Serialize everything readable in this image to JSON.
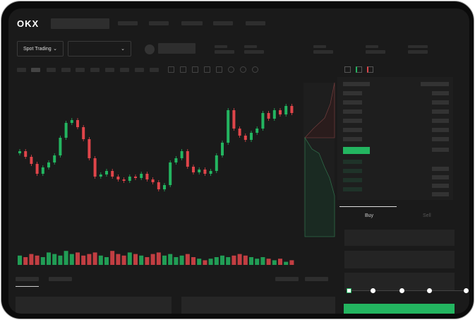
{
  "header": {
    "logo": "OKX"
  },
  "market_select": {
    "label": "Spot Trading",
    "pair_value": ""
  },
  "trade_panel": {
    "tabs": [
      "Buy",
      "Sell"
    ],
    "active_tab": "Buy",
    "leverage_steps": 5,
    "selected_step": 0
  },
  "colors": {
    "up": "#23b560",
    "down": "#e0454a",
    "background": "#1a1a1a",
    "accent": "#23b560"
  },
  "chart_data": {
    "type": "candlestick",
    "candles": [
      {
        "o": 125,
        "c": 128
      },
      {
        "o": 128,
        "c": 120
      },
      {
        "o": 120,
        "c": 110
      },
      {
        "o": 110,
        "c": 96
      },
      {
        "o": 96,
        "c": 105
      },
      {
        "o": 105,
        "c": 112
      },
      {
        "o": 112,
        "c": 122
      },
      {
        "o": 122,
        "c": 147
      },
      {
        "o": 147,
        "c": 168
      },
      {
        "o": 168,
        "c": 172
      },
      {
        "o": 172,
        "c": 162
      },
      {
        "o": 162,
        "c": 145
      },
      {
        "o": 145,
        "c": 118
      },
      {
        "o": 118,
        "c": 92
      },
      {
        "o": 92,
        "c": 95
      },
      {
        "o": 95,
        "c": 100
      },
      {
        "o": 100,
        "c": 92
      },
      {
        "o": 92,
        "c": 88
      },
      {
        "o": 88,
        "c": 86
      },
      {
        "o": 86,
        "c": 92
      },
      {
        "o": 92,
        "c": 90
      },
      {
        "o": 90,
        "c": 96
      },
      {
        "o": 96,
        "c": 88
      },
      {
        "o": 88,
        "c": 84
      },
      {
        "o": 84,
        "c": 74
      },
      {
        "o": 74,
        "c": 80
      },
      {
        "o": 80,
        "c": 112
      },
      {
        "o": 112,
        "c": 118
      },
      {
        "o": 118,
        "c": 128
      },
      {
        "o": 128,
        "c": 106
      },
      {
        "o": 106,
        "c": 98
      },
      {
        "o": 98,
        "c": 102
      },
      {
        "o": 102,
        "c": 96
      },
      {
        "o": 96,
        "c": 100
      },
      {
        "o": 100,
        "c": 122
      },
      {
        "o": 122,
        "c": 140
      },
      {
        "o": 140,
        "c": 186
      },
      {
        "o": 186,
        "c": 160
      },
      {
        "o": 160,
        "c": 150
      },
      {
        "o": 150,
        "c": 144
      },
      {
        "o": 144,
        "c": 154
      },
      {
        "o": 154,
        "c": 160
      },
      {
        "o": 160,
        "c": 182
      },
      {
        "o": 182,
        "c": 174
      },
      {
        "o": 174,
        "c": 186
      },
      {
        "o": 186,
        "c": 180
      },
      {
        "o": 180,
        "c": 192
      },
      {
        "o": 192,
        "c": 182
      }
    ],
    "volume": [
      6,
      5,
      7,
      6,
      5,
      8,
      7,
      6,
      9,
      7,
      8,
      6,
      7,
      8,
      6,
      5,
      9,
      7,
      6,
      8,
      7,
      6,
      5,
      7,
      8,
      6,
      7,
      5,
      6,
      7,
      5,
      4,
      3,
      4,
      5,
      6,
      5,
      6,
      7,
      6,
      5,
      4,
      5,
      4,
      3,
      4,
      2,
      3
    ]
  }
}
